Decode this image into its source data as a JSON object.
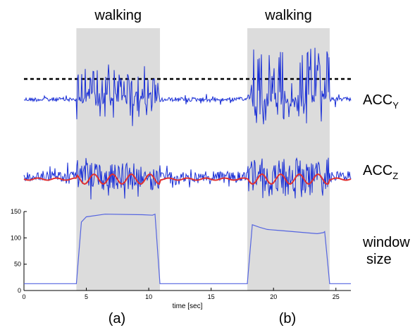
{
  "chart_data": {
    "type": "line",
    "walking_labels": [
      "walking",
      "walking"
    ],
    "walking_intervals": [
      [
        4.2,
        10.9
      ],
      [
        17.9,
        24.5
      ]
    ],
    "signal_labels": {
      "acc_y": {
        "base": "ACC",
        "sub": "Y"
      },
      "acc_z": {
        "base": "ACC",
        "sub": "Z"
      },
      "window_size": [
        "window",
        "size"
      ]
    },
    "panel_labels": [
      "(a)",
      "(b)"
    ],
    "xlabel": "time [sec]",
    "xlim": [
      0,
      26.2
    ],
    "xticks": [
      "0",
      "5",
      "10",
      "15",
      "20",
      "25"
    ],
    "xtick_values": [
      0,
      5,
      10,
      15,
      20,
      25
    ],
    "ylim": [
      0,
      150
    ],
    "yticks": [
      "0",
      "50",
      "100",
      "150"
    ],
    "ytick_values": [
      0,
      50,
      100,
      150
    ],
    "window_size_series": {
      "x": [
        0,
        4.2,
        4.6,
        5.0,
        6.5,
        9.5,
        10.3,
        10.5,
        10.9,
        17.9,
        18.3,
        18.9,
        19.5,
        20.5,
        21.5,
        22.5,
        23.5,
        24.0,
        24.1,
        24.5,
        26.2
      ],
      "y": [
        13,
        13,
        130,
        140,
        145,
        144,
        143,
        145,
        13,
        13,
        125,
        120,
        116,
        114,
        112,
        110,
        108,
        110,
        112,
        13,
        13
      ]
    },
    "colors": {
      "shade": "#dcdcdc",
      "signal": "#1a2fd6",
      "signal_light": "#6f7ee8",
      "smooth": "#e03030",
      "threshold": "#000000",
      "window_line": "#5565e0"
    }
  }
}
